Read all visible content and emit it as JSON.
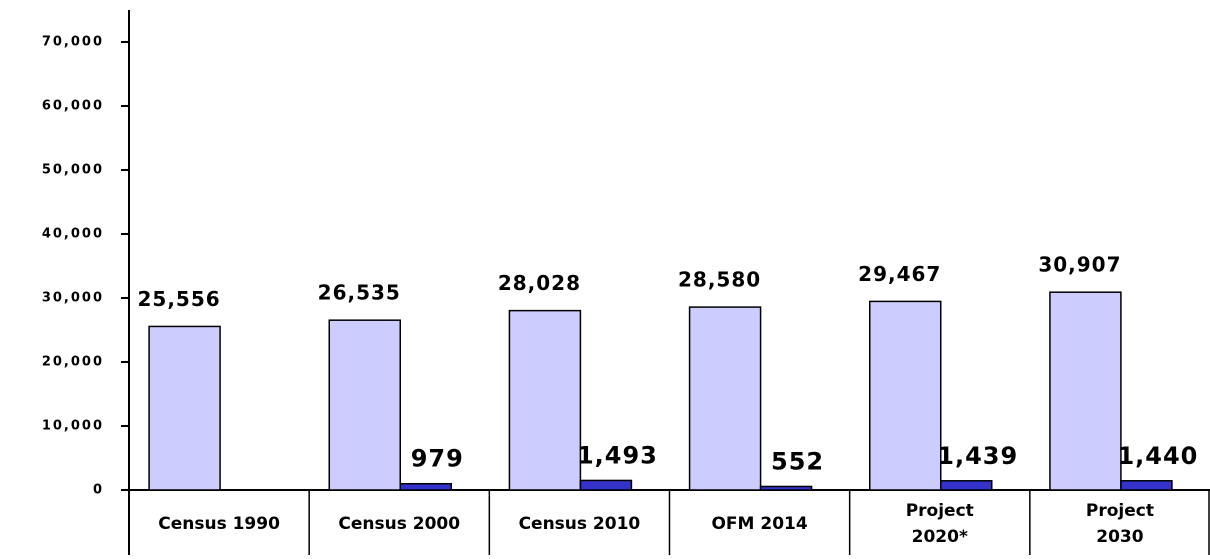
{
  "chart_data": {
    "type": "bar",
    "categories": [
      "Census 1990",
      "Census 2000",
      "Census 2010",
      "OFM 2014",
      "Project\n2020*",
      "Project\n2030"
    ],
    "series": [
      {
        "color": "#ccccff",
        "values": [
          25556,
          26535,
          28028,
          28580,
          29467,
          30907
        ],
        "value_labels": [
          "25,556",
          "26,535",
          "28,028",
          "28,580",
          "29,467",
          "30,907"
        ]
      },
      {
        "color": "#3333cc",
        "values": [
          null,
          979,
          1493,
          552,
          1439,
          1440
        ],
        "value_labels": [
          null,
          "979",
          "1,493",
          "552",
          "1,439",
          "1,440"
        ]
      }
    ],
    "ylim": [
      0,
      75000
    ],
    "yticks": [
      0,
      {
        "value": 10000,
        "label": "10,000"
      },
      {
        "value": 20000,
        "label": "20,000"
      },
      {
        "value": 30000,
        "label": "30,000"
      },
      {
        "value": 40000,
        "label": "40,000"
      },
      {
        "value": 50000,
        "label": "50,000"
      },
      {
        "value": 60000,
        "label": "60,000"
      },
      {
        "value": 70000,
        "label": "70,000"
      }
    ],
    "grid": false
  }
}
